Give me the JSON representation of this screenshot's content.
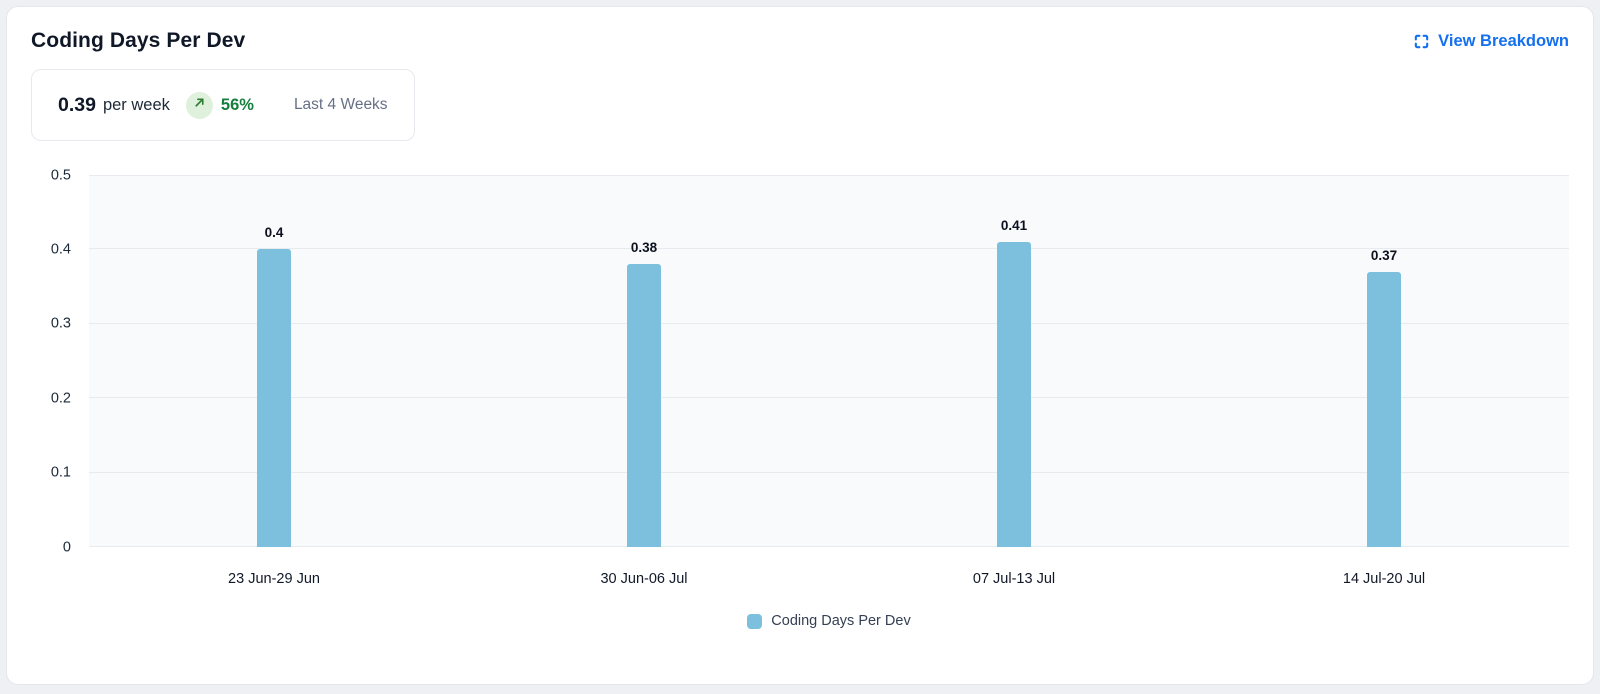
{
  "card": {
    "title": "Coding Days Per Dev",
    "action_label": "View Breakdown",
    "action_color": "#1570ef"
  },
  "summary": {
    "value": "0.39",
    "unit": "per week",
    "trend_direction": "up",
    "trend_percent": "56%",
    "trend_color": "#15803d",
    "trend_bg": "#dff0dc",
    "period": "Last 4 Weeks"
  },
  "chart_data": {
    "type": "bar",
    "title": "Coding Days Per Dev",
    "categories": [
      "23 Jun-29 Jun",
      "30 Jun-06 Jul",
      "07 Jul-13 Jul",
      "14 Jul-20 Jul"
    ],
    "values": [
      0.4,
      0.38,
      0.41,
      0.37
    ],
    "value_labels": [
      "0.4",
      "0.38",
      "0.41",
      "0.37"
    ],
    "xlabel": "",
    "ylabel": "",
    "ylim": [
      0,
      0.5
    ],
    "y_ticks": [
      "0",
      "0.1",
      "0.2",
      "0.3",
      "0.4",
      "0.5"
    ],
    "grid": true,
    "bar_color": "#7cc0de",
    "plot_bg": "#f8fafc",
    "legend": [
      {
        "label": "Coding Days Per Dev",
        "color": "#7cc0de"
      }
    ],
    "legend_position": "bottom"
  }
}
